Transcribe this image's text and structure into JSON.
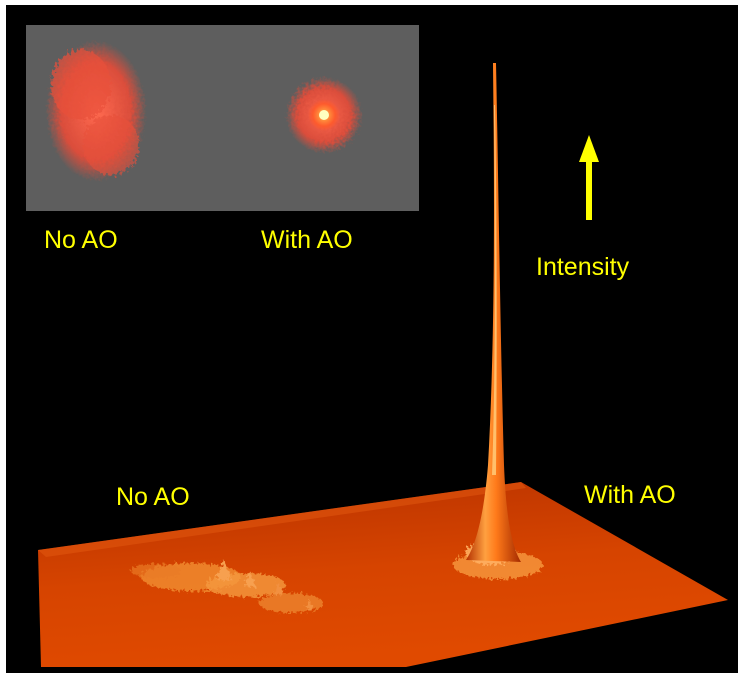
{
  "inset": {
    "left_label": "No AO",
    "right_label": "With AO"
  },
  "intensity_label": "Intensity",
  "surface": {
    "left_label": "No AO",
    "right_label": "With AO"
  },
  "colors": {
    "background": "#000000",
    "label": "#ffff00",
    "inset_panel": "#5e5e5e",
    "surface": "#c83a00",
    "peak": "#ff7a1a"
  }
}
